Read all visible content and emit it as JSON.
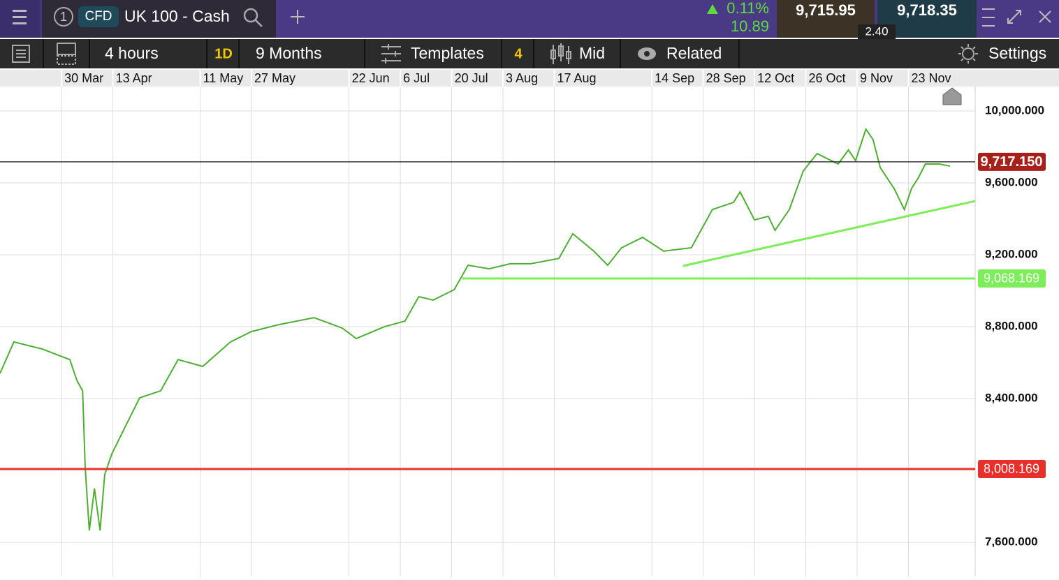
{
  "header": {
    "tab_number": "1",
    "badge": "CFD",
    "instrument": "UK 100 - Cash",
    "change_pct": "0.11%",
    "change": "10.89",
    "bid": "9,715.95",
    "ask": "9,718.35",
    "spread": "2.40"
  },
  "toolbar": {
    "interval": "4 hours",
    "period_badge": "1D",
    "range": "9 Months",
    "templates": "Templates",
    "templates_count": "4",
    "price_type": "Mid",
    "related": "Related",
    "settings": "Settings"
  },
  "chart_data": {
    "type": "line",
    "xlim": [
      -12,
      178
    ],
    "ylim": [
      7410,
      10136
    ],
    "xticks": [
      {
        "value": 0,
        "label": "30 Mar"
      },
      {
        "value": 10,
        "label": "13 Apr"
      },
      {
        "value": 27,
        "label": "11 May"
      },
      {
        "value": 37,
        "label": "27 May"
      },
      {
        "value": 56,
        "label": "22 Jun"
      },
      {
        "value": 66,
        "label": "6 Jul"
      },
      {
        "value": 76,
        "label": "20 Jul"
      },
      {
        "value": 86,
        "label": "3 Aug"
      },
      {
        "value": 96,
        "label": "17 Aug"
      },
      {
        "value": 115,
        "label": "14 Sep"
      },
      {
        "value": 125,
        "label": "28 Sep"
      },
      {
        "value": 135,
        "label": "12 Oct"
      },
      {
        "value": 145,
        "label": "26 Oct"
      },
      {
        "value": 155,
        "label": "9 Nov"
      },
      {
        "value": 165,
        "label": "23 Nov"
      }
    ],
    "yticks": [
      {
        "value": 7600,
        "label": "7,600.000"
      },
      {
        "value": 8400,
        "label": "8,400.000"
      },
      {
        "value": 8800,
        "label": "8,800.000"
      },
      {
        "value": 9200,
        "label": "9,200.000"
      },
      {
        "value": 9600,
        "label": "9,600.000"
      },
      {
        "value": 10000,
        "label": "10,000.000"
      }
    ],
    "grid": true,
    "x": [
      -12,
      -9.3,
      -3.8,
      1.6,
      3,
      4.1,
      4.6,
      5.4,
      6.4,
      7.5,
      8.4,
      9.8,
      12.5,
      15.2,
      19.3,
      22.7,
      27.5,
      32.9,
      37,
      42.4,
      49.2,
      54.7,
      57.4,
      62.9,
      66.9,
      69.6,
      72.4,
      76.5,
      79.2,
      83.3,
      87.4,
      91.4,
      96.9,
      99.6,
      103.7,
      106.4,
      109.1,
      113.2,
      117.3,
      122.7,
      126.8,
      130.9,
      132.2,
      135,
      137.7,
      139,
      141.8,
      144.5,
      147.2,
      151.3,
      153.3,
      154.7,
      156.7,
      158.1,
      159.5,
      162.2,
      164.2,
      165.6,
      166.9,
      168.3,
      171,
      173.1
    ],
    "series": [
      {
        "color": "#4caf32",
        "values": [
          8540,
          8715,
          8676,
          8617,
          8500,
          8443,
          8016,
          7666,
          7900,
          7666,
          7977,
          8093,
          8249,
          8404,
          8443,
          8617,
          8579,
          8715,
          8773,
          8812,
          8850,
          8792,
          8734,
          8800,
          8831,
          8967,
          8948,
          9006,
          9142,
          9122,
          9150,
          9150,
          9180,
          9317,
          9220,
          9142,
          9239,
          9297,
          9220,
          9239,
          9452,
          9491,
          9550,
          9394,
          9414,
          9336,
          9452,
          9666,
          9763,
          9705,
          9783,
          9724,
          9899,
          9841,
          9685,
          9569,
          9452,
          9569,
          9627,
          9705,
          9705,
          9693
        ]
      }
    ],
    "levels": [
      {
        "value": 9717.15,
        "label": "9,717.150",
        "color": "#111111",
        "label_color": "#a8201a"
      },
      {
        "value": 9068.169,
        "label": "9,068.169",
        "color": "#7ded5a",
        "label_color": "#7ded5a",
        "x_start": 78
      },
      {
        "value": 8008.169,
        "label": "8,008.169",
        "color": "#e8302a",
        "label_color": "#e8302a"
      }
    ],
    "trendline": {
      "x": [
        121.1,
        178
      ],
      "y": [
        9138,
        9499
      ],
      "color": "#7ded5a"
    }
  }
}
